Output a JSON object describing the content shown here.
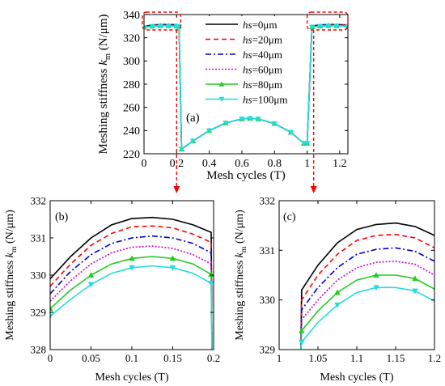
{
  "series_legend": [
    {
      "prefix": "hs",
      "suffix": "=0μm",
      "color": "#000000",
      "dash": "",
      "marker": ""
    },
    {
      "prefix": "hs",
      "suffix": "=20μm",
      "color": "#ff0000",
      "dash": "6,4",
      "marker": ""
    },
    {
      "prefix": "hs",
      "suffix": "=40μm",
      "color": "#0000cc",
      "dash": "7,3,2,3",
      "marker": ""
    },
    {
      "prefix": "hs",
      "suffix": "=60μm",
      "color": "#cc00cc",
      "dash": "2,2",
      "marker": ""
    },
    {
      "prefix": "hs",
      "suffix": "=80μm",
      "color": "#22cc22",
      "dash": "",
      "marker": "triangle"
    },
    {
      "prefix": "hs",
      "suffix": "=100μm",
      "color": "#22dddd",
      "dash": "",
      "marker": "down-triangle"
    }
  ],
  "callout_color": "#ff0000",
  "chart_data": [
    {
      "panel": "(a)",
      "type": "line",
      "ylabel_prefix": "Meshing stiffness ",
      "ylabel_var": "k",
      "ylabel_sub": "m",
      "ylabel_suffix": " (N/μm)",
      "xlabel": "Mesh cycles (T)",
      "xlim": [
        0,
        1.25
      ],
      "ylim": [
        220,
        340
      ],
      "xticks": [
        0,
        0.2,
        0.4,
        0.6,
        0.8,
        1,
        1.2
      ],
      "xtick_labels": [
        "0",
        "0.2",
        "0.4",
        "0.6",
        "0.8",
        "1",
        "1.2"
      ],
      "yticks": [
        220,
        240,
        260,
        280,
        300,
        320,
        340
      ],
      "ytick_labels": [
        "220",
        "240",
        "260",
        "280",
        "300",
        "320",
        "340"
      ],
      "series": [
        {
          "x": [
            0,
            0.05,
            0.1,
            0.15,
            0.2,
            0.215,
            0.23,
            0.3,
            0.4,
            0.5,
            0.6,
            0.65,
            0.7,
            0.8,
            0.9,
            0.98,
            1.0,
            1.03,
            1.08,
            1.13,
            1.18,
            1.25
          ],
          "y": [
            329.9,
            331.0,
            331.5,
            331.4,
            331.2,
            331.0,
            224.0,
            231.0,
            240.0,
            246.5,
            250.0,
            250.5,
            250.0,
            246.0,
            238.5,
            229.0,
            229.0,
            330.2,
            331.1,
            331.5,
            331.4,
            331.1
          ]
        },
        {
          "x": [
            0,
            0.05,
            0.1,
            0.15,
            0.2,
            0.215,
            0.23,
            0.3,
            0.4,
            0.5,
            0.6,
            0.65,
            0.7,
            0.8,
            0.9,
            0.98,
            1.0,
            1.03,
            1.08,
            1.13,
            1.18,
            1.25
          ],
          "y": [
            329.7,
            330.8,
            331.3,
            331.2,
            330.9,
            330.8,
            224.0,
            231.0,
            240.0,
            246.5,
            250.0,
            250.5,
            250.0,
            246.0,
            238.5,
            229.0,
            229.0,
            330.0,
            330.9,
            331.3,
            331.2,
            330.9
          ]
        },
        {
          "x": [
            0,
            0.05,
            0.1,
            0.15,
            0.2,
            0.215,
            0.23,
            0.3,
            0.4,
            0.5,
            0.6,
            0.65,
            0.7,
            0.8,
            0.9,
            0.98,
            1.0,
            1.03,
            1.08,
            1.13,
            1.18,
            1.25
          ],
          "y": [
            329.5,
            330.6,
            331.0,
            330.9,
            330.6,
            330.5,
            224.0,
            231.0,
            240.0,
            246.5,
            250.0,
            250.5,
            250.0,
            246.0,
            238.5,
            229.0,
            229.0,
            329.8,
            330.6,
            331.0,
            331.0,
            330.7
          ]
        },
        {
          "x": [
            0,
            0.05,
            0.1,
            0.15,
            0.2,
            0.215,
            0.23,
            0.3,
            0.4,
            0.5,
            0.6,
            0.65,
            0.7,
            0.8,
            0.9,
            0.98,
            1.0,
            1.03,
            1.08,
            1.13,
            1.18,
            1.25
          ],
          "y": [
            329.3,
            330.3,
            330.7,
            330.6,
            330.3,
            330.2,
            224.0,
            231.0,
            240.0,
            246.5,
            250.0,
            250.5,
            250.0,
            246.0,
            238.5,
            229.0,
            229.0,
            329.6,
            330.4,
            330.8,
            330.7,
            330.4
          ]
        },
        {
          "x": [
            0,
            0.05,
            0.1,
            0.15,
            0.2,
            0.215,
            0.23,
            0.3,
            0.4,
            0.5,
            0.6,
            0.65,
            0.7,
            0.8,
            0.9,
            0.98,
            1.0,
            1.03,
            1.08,
            1.13,
            1.18,
            1.25
          ],
          "y": [
            329.1,
            330.0,
            330.5,
            330.4,
            330.0,
            329.9,
            224.0,
            231.0,
            240.0,
            246.5,
            250.0,
            250.5,
            250.0,
            246.0,
            238.5,
            229.0,
            229.0,
            329.4,
            330.2,
            330.5,
            330.4,
            330.2
          ]
        },
        {
          "x": [
            0,
            0.05,
            0.1,
            0.15,
            0.2,
            0.215,
            0.23,
            0.3,
            0.4,
            0.5,
            0.6,
            0.65,
            0.7,
            0.8,
            0.9,
            0.98,
            1.0,
            1.03,
            1.08,
            1.13,
            1.18,
            1.25
          ],
          "y": [
            328.9,
            329.8,
            330.2,
            330.2,
            329.7,
            329.6,
            224.0,
            231.0,
            240.0,
            246.5,
            250.0,
            250.5,
            250.0,
            246.0,
            238.5,
            229.0,
            229.0,
            329.2,
            329.9,
            330.2,
            330.2,
            329.9
          ]
        }
      ]
    },
    {
      "panel": "(b)",
      "type": "line",
      "ylabel_prefix": "Meshing stiffness ",
      "ylabel_var": "k",
      "ylabel_sub": "m",
      "ylabel_suffix": " (N/μm)",
      "xlabel": "Mesh cycles (T)",
      "xlim": [
        0,
        0.2
      ],
      "ylim": [
        328,
        332
      ],
      "xticks": [
        0,
        0.05,
        0.1,
        0.15,
        0.2
      ],
      "xtick_labels": [
        "0",
        "0.05",
        "0.1",
        "0.15",
        "0.2"
      ],
      "yticks": [
        328,
        329,
        330,
        331,
        332
      ],
      "ytick_labels": [
        "328",
        "329",
        "330",
        "331",
        "332"
      ],
      "series": [
        {
          "x": [
            0,
            0.025,
            0.05,
            0.075,
            0.1,
            0.125,
            0.15,
            0.175,
            0.197,
            0.198
          ],
          "y": [
            329.9,
            330.5,
            331.0,
            331.35,
            331.52,
            331.55,
            331.5,
            331.35,
            331.15,
            328.0
          ]
        },
        {
          "x": [
            0,
            0.025,
            0.05,
            0.075,
            0.1,
            0.125,
            0.15,
            0.175,
            0.197,
            0.198
          ],
          "y": [
            329.7,
            330.3,
            330.8,
            331.12,
            331.3,
            331.32,
            331.27,
            331.1,
            330.88,
            328.0
          ]
        },
        {
          "x": [
            0,
            0.025,
            0.05,
            0.075,
            0.1,
            0.125,
            0.15,
            0.175,
            0.197,
            0.198
          ],
          "y": [
            329.5,
            330.1,
            330.55,
            330.85,
            331.0,
            331.05,
            331.0,
            330.85,
            330.6,
            328.0
          ]
        },
        {
          "x": [
            0,
            0.025,
            0.05,
            0.075,
            0.1,
            0.125,
            0.15,
            0.175,
            0.197,
            0.198
          ],
          "y": [
            329.3,
            329.85,
            330.3,
            330.6,
            330.75,
            330.78,
            330.72,
            330.55,
            330.3,
            328.0
          ]
        },
        {
          "x": [
            0,
            0.025,
            0.05,
            0.075,
            0.1,
            0.125,
            0.15,
            0.175,
            0.197,
            0.198
          ],
          "y": [
            329.1,
            329.6,
            330.0,
            330.3,
            330.45,
            330.5,
            330.45,
            330.3,
            330.02,
            328.0
          ],
          "markers": [
            [
              0,
              329.1
            ],
            [
              0.05,
              330.0
            ],
            [
              0.1,
              330.45
            ],
            [
              0.15,
              330.45
            ],
            [
              0.197,
              330.02
            ]
          ]
        },
        {
          "x": [
            0,
            0.025,
            0.05,
            0.075,
            0.1,
            0.125,
            0.15,
            0.175,
            0.197,
            0.198
          ],
          "y": [
            328.9,
            329.35,
            329.75,
            330.05,
            330.2,
            330.25,
            330.2,
            330.05,
            329.78,
            328.0
          ],
          "markers": [
            [
              0,
              328.9
            ],
            [
              0.05,
              329.75
            ],
            [
              0.1,
              330.2
            ],
            [
              0.15,
              330.2
            ],
            [
              0.197,
              329.78
            ]
          ]
        }
      ]
    },
    {
      "panel": "(c)",
      "type": "line",
      "ylabel_prefix": "Meshing stiffness ",
      "ylabel_var": "k",
      "ylabel_sub": "m",
      "ylabel_suffix": " (N/μm)",
      "xlabel": "Mesh cycles (T)",
      "xlim": [
        1,
        1.2
      ],
      "ylim": [
        329,
        332
      ],
      "xticks": [
        1,
        1.05,
        1.1,
        1.15,
        1.2
      ],
      "xtick_labels": [
        "1",
        "1.05",
        "1.1",
        "1.15",
        "1.2"
      ],
      "yticks": [
        329,
        330,
        331,
        332
      ],
      "ytick_labels": [
        "329",
        "330",
        "331",
        "332"
      ],
      "series": [
        {
          "x": [
            1.028,
            1.029,
            1.05,
            1.075,
            1.1,
            1.125,
            1.15,
            1.175,
            1.2
          ],
          "y": [
            329.0,
            330.2,
            330.7,
            331.15,
            331.42,
            331.52,
            331.55,
            331.48,
            331.3
          ]
        },
        {
          "x": [
            1.028,
            1.029,
            1.05,
            1.075,
            1.1,
            1.125,
            1.15,
            1.175,
            1.2
          ],
          "y": [
            329.0,
            330.0,
            330.5,
            330.92,
            331.2,
            331.3,
            331.32,
            331.25,
            331.05
          ]
        },
        {
          "x": [
            1.028,
            1.029,
            1.05,
            1.075,
            1.1,
            1.125,
            1.15,
            1.175,
            1.2
          ],
          "y": [
            329.0,
            329.8,
            330.25,
            330.65,
            330.92,
            331.02,
            331.05,
            330.98,
            330.78
          ]
        },
        {
          "x": [
            1.028,
            1.029,
            1.05,
            1.075,
            1.1,
            1.125,
            1.15,
            1.175,
            1.2
          ],
          "y": [
            329.0,
            329.6,
            330.0,
            330.4,
            330.65,
            330.76,
            330.78,
            330.72,
            330.5
          ]
        },
        {
          "x": [
            1.028,
            1.029,
            1.05,
            1.075,
            1.1,
            1.125,
            1.15,
            1.175,
            1.2
          ],
          "y": [
            329.0,
            329.38,
            329.78,
            330.15,
            330.4,
            330.5,
            330.5,
            330.43,
            330.22
          ],
          "markers": [
            [
              1.029,
              329.38
            ],
            [
              1.075,
              330.15
            ],
            [
              1.125,
              330.5
            ],
            [
              1.175,
              330.43
            ]
          ]
        },
        {
          "x": [
            1.028,
            1.029,
            1.05,
            1.075,
            1.1,
            1.125,
            1.15,
            1.175,
            1.2
          ],
          "y": [
            329.0,
            329.15,
            329.55,
            329.9,
            330.15,
            330.25,
            330.25,
            330.18,
            329.98
          ],
          "markers": [
            [
              1.029,
              329.15
            ],
            [
              1.075,
              329.9
            ],
            [
              1.125,
              330.25
            ],
            [
              1.175,
              330.18
            ]
          ]
        }
      ]
    }
  ]
}
